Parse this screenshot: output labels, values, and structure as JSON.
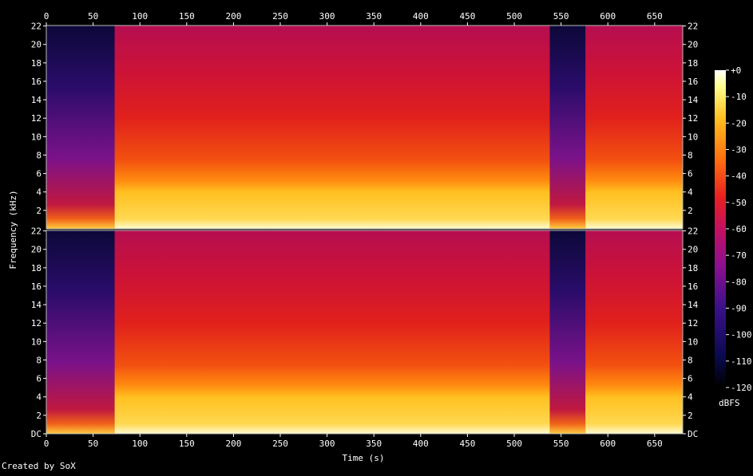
{
  "chart_data": {
    "type": "heatmap",
    "title": "",
    "xlabel": "Time (s)",
    "ylabel": "Frequency (kHz)",
    "x_ticks": [
      "0",
      "50",
      "100",
      "150",
      "200",
      "250",
      "300",
      "350",
      "400",
      "450",
      "500",
      "550",
      "600",
      "650"
    ],
    "xlim": [
      0,
      680
    ],
    "channels": [
      {
        "y_ticks": [
          "22",
          "20",
          "18",
          "16",
          "14",
          "12",
          "10",
          "8",
          "6",
          "4",
          "2"
        ],
        "ylim": [
          0,
          22.05
        ]
      },
      {
        "y_ticks": [
          "22",
          "20",
          "18",
          "16",
          "14",
          "12",
          "10",
          "8",
          "6",
          "4",
          "2",
          "DC"
        ],
        "ylim": [
          0,
          22.05
        ]
      }
    ],
    "colorbar": {
      "label": "dBFS",
      "ticks": [
        "+0",
        "-10",
        "-20",
        "-30",
        "-40",
        "-50",
        "-60",
        "-70",
        "-80",
        "-90",
        "-100",
        "-110",
        "-120"
      ],
      "range": [
        -120,
        0
      ]
    },
    "segments": [
      {
        "t": [
          0,
          73
        ],
        "level": "quiet"
      },
      {
        "t": [
          73,
          538
        ],
        "level": "loud"
      },
      {
        "t": [
          538,
          576
        ],
        "level": "quiet"
      },
      {
        "t": [
          576,
          680
        ],
        "level": "loud"
      }
    ]
  },
  "footer": "Created by SoX"
}
